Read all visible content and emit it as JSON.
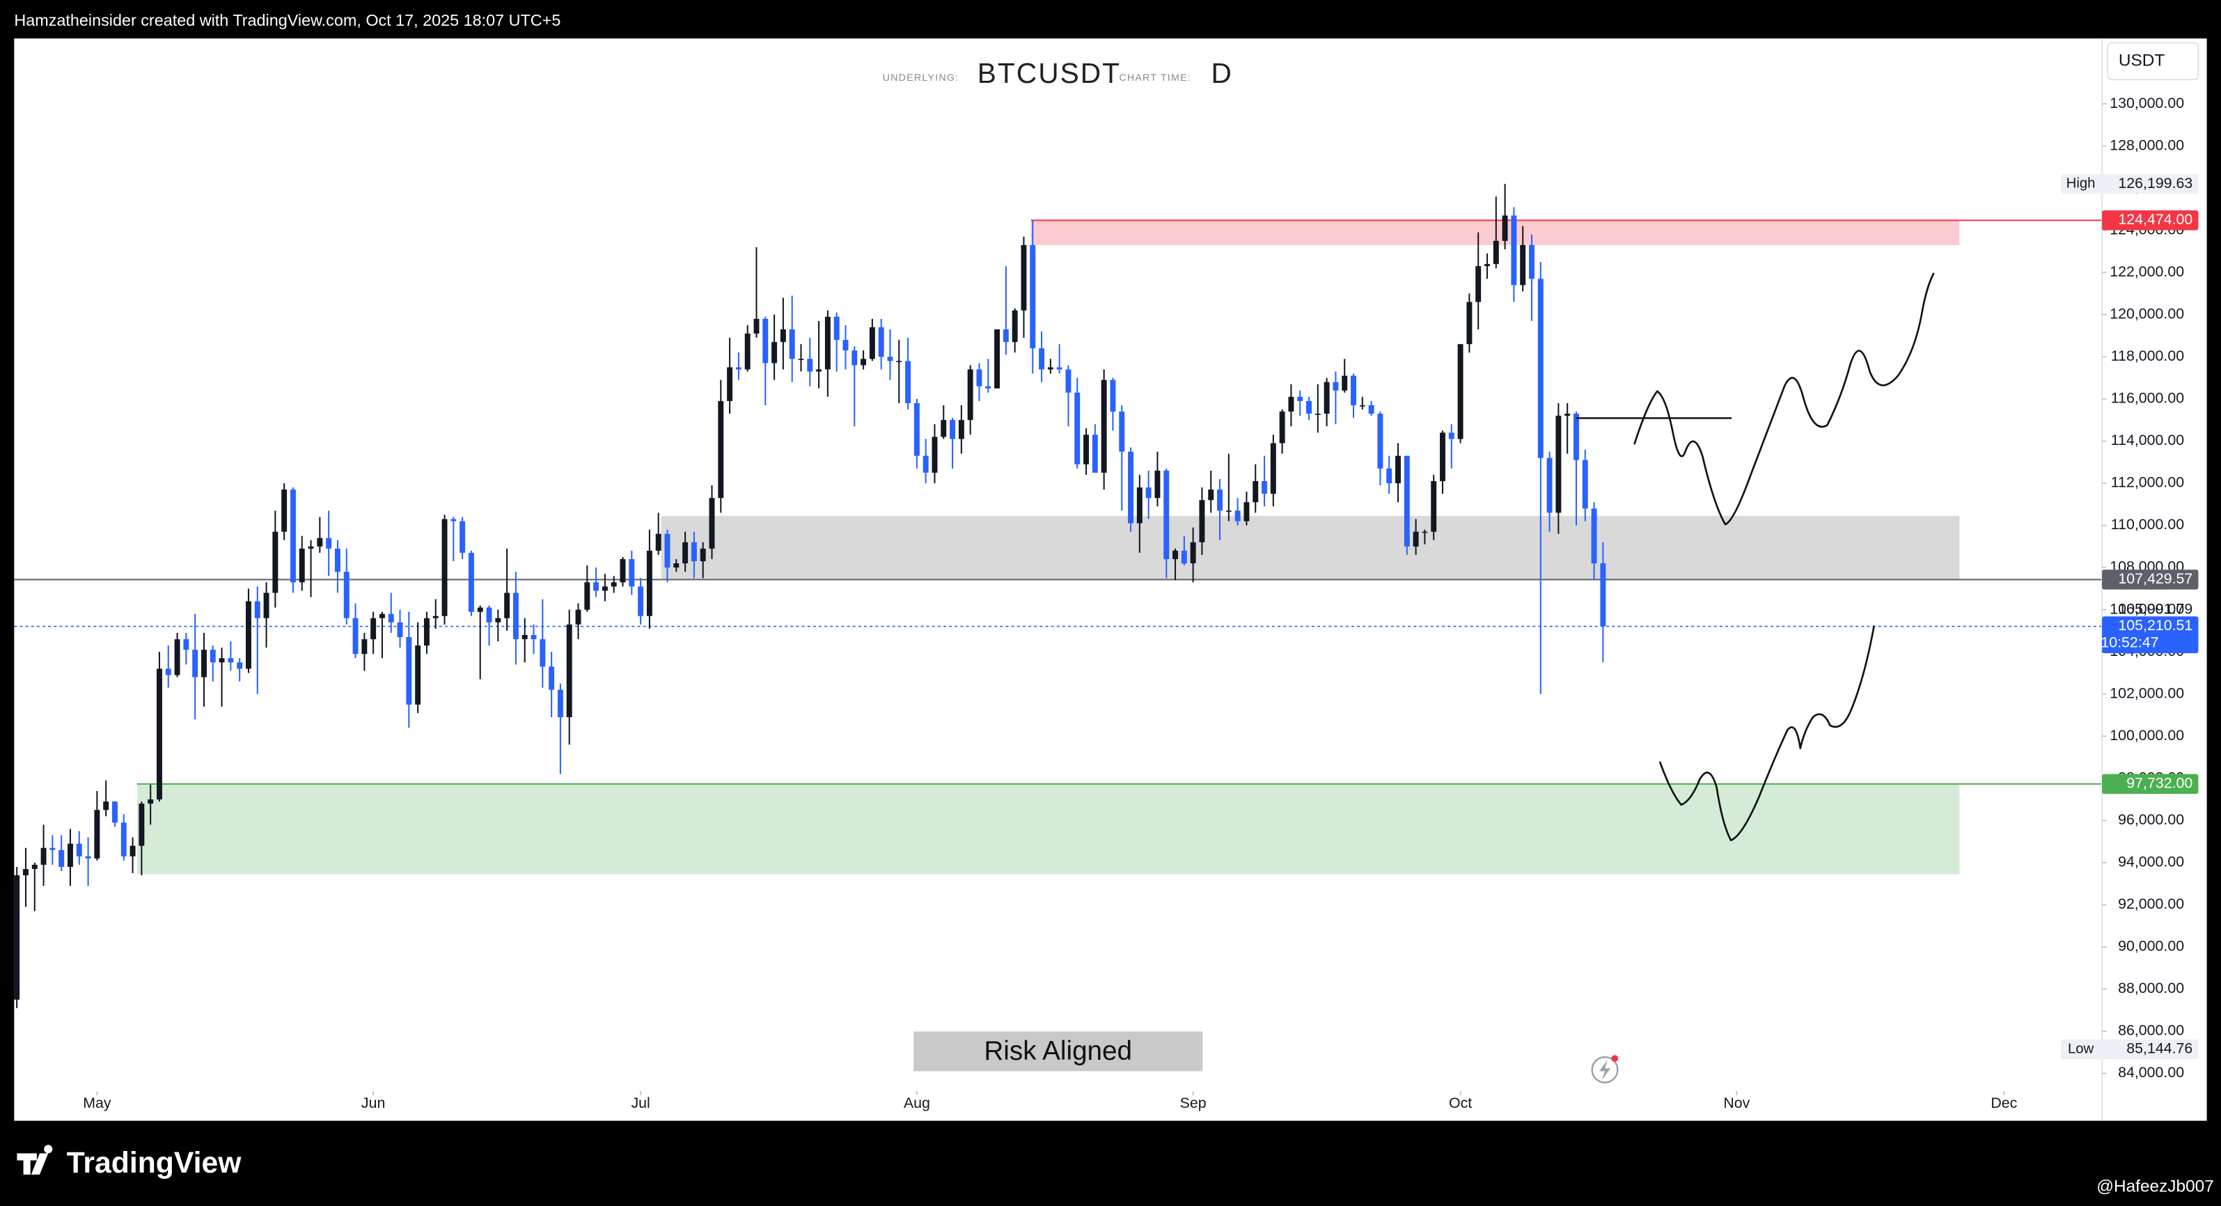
{
  "header": {
    "credit": "Hamzatheinsider created with TradingView.com, Oct 17, 2025 18:07 UTC+5"
  },
  "footer": {
    "brand": "TradingView",
    "author": "@HafeezJb007"
  },
  "chart_data": {
    "type": "candlestick",
    "underlying_label": "UNDERLYING:",
    "symbol": "BTCUSDT",
    "interval_label": "CHART TIME:",
    "interval": "D",
    "currency": "USDT",
    "annotation": "Risk Aligned",
    "up_color": "#131722",
    "down_color": "#2962ff",
    "xlim": [
      -0.3,
      234
    ],
    "ylim": [
      83300,
      133100
    ],
    "xticks": [
      {
        "value": 9,
        "label": "May"
      },
      {
        "value": 40,
        "label": "Jun"
      },
      {
        "value": 70,
        "label": "Jul"
      },
      {
        "value": 101,
        "label": "Aug"
      },
      {
        "value": 132,
        "label": "Sep"
      },
      {
        "value": 162,
        "label": "Oct"
      },
      {
        "value": 193,
        "label": "Nov"
      },
      {
        "value": 223,
        "label": "Dec"
      }
    ],
    "yticks": [
      {
        "value": 84000,
        "label": "84,000.00"
      },
      {
        "value": 86000,
        "label": "86,000.00"
      },
      {
        "value": 88000,
        "label": "88,000.00"
      },
      {
        "value": 90000,
        "label": "90,000.00"
      },
      {
        "value": 92000,
        "label": "92,000.00"
      },
      {
        "value": 94000,
        "label": "94,000.00"
      },
      {
        "value": 96000,
        "label": "96,000.00"
      },
      {
        "value": 98000,
        "label": "98,000.00"
      },
      {
        "value": 100000,
        "label": "100,000.00"
      },
      {
        "value": 102000,
        "label": "102,000.00"
      },
      {
        "value": 104000,
        "label": "104,000.00"
      },
      {
        "value": 106000,
        "label": "106,000.00"
      },
      {
        "value": 108000,
        "label": "108,000.00"
      },
      {
        "value": 110000,
        "label": "110,000.00"
      },
      {
        "value": 112000,
        "label": "112,000.00"
      },
      {
        "value": 114000,
        "label": "114,000.00"
      },
      {
        "value": 116000,
        "label": "116,000.00"
      },
      {
        "value": 118000,
        "label": "118,000.00"
      },
      {
        "value": 120000,
        "label": "120,000.00"
      },
      {
        "value": 122000,
        "label": "122,000.00"
      },
      {
        "value": 124000,
        "label": "124,000.00"
      },
      {
        "value": 126000,
        "label": "126,000.00"
      },
      {
        "value": 128000,
        "label": "128,000.00"
      },
      {
        "value": 130000,
        "label": "130,000.00"
      }
    ],
    "zones": [
      {
        "top": 124474,
        "bottom": 123300,
        "from": 113.8,
        "to": 218,
        "color": "#fccbcf"
      },
      {
        "top": 110450,
        "bottom": 107429.57,
        "from": 72.3,
        "to": 218,
        "color": "#d9d9d9"
      },
      {
        "top": 97732,
        "bottom": 93450,
        "from": 13.5,
        "to": 218,
        "color": "#d4ecd6"
      }
    ],
    "price_labels": [
      {
        "value": 124474,
        "label": "124,474.00",
        "color": "#f23645",
        "line": "solid",
        "line_from": 113.8
      },
      {
        "value": 107429.57,
        "label": "107,429.57",
        "color": "#5d606b",
        "line": "solid"
      },
      {
        "value": 105991.79,
        "label": "105,991.79"
      },
      {
        "value": 105210.51,
        "label": "105,210.51",
        "countdown": "10:52:47",
        "color": "#2962ff",
        "line": "dotted"
      },
      {
        "value": 97732,
        "label": "97,732.00",
        "color": "#4caf50",
        "line": "solid",
        "line_from": 13.5
      }
    ],
    "high": {
      "name": "High",
      "value": 126199.63,
      "label": "126,199.63"
    },
    "low": {
      "name": "Low",
      "value": 85144.76,
      "label": "85,144.76"
    },
    "ohlc": [
      [
        87500,
        93800,
        87100,
        93400
      ],
      [
        93400,
        94700,
        91900,
        93700
      ],
      [
        93700,
        94000,
        91700,
        93900
      ],
      [
        93900,
        95800,
        92900,
        94700
      ],
      [
        94700,
        95300,
        93900,
        94600
      ],
      [
        94600,
        95300,
        93600,
        93800
      ],
      [
        93800,
        95600,
        92900,
        94900
      ],
      [
        94900,
        95500,
        93900,
        94300
      ],
      [
        94300,
        95200,
        92900,
        94200
      ],
      [
        94200,
        97400,
        94100,
        96500
      ],
      [
        96500,
        97900,
        96200,
        96900
      ],
      [
        96900,
        96900,
        95700,
        95900
      ],
      [
        95900,
        96300,
        94100,
        94300
      ],
      [
        94300,
        95200,
        93500,
        94800
      ],
      [
        94800,
        96900,
        93400,
        96800
      ],
      [
        96800,
        97700,
        95800,
        97000
      ],
      [
        97000,
        104000,
        96900,
        103200
      ],
      [
        103200,
        104300,
        102300,
        102900
      ],
      [
        102900,
        104900,
        102800,
        104600
      ],
      [
        104600,
        104900,
        103400,
        104100
      ],
      [
        104100,
        105800,
        100800,
        102800
      ],
      [
        102800,
        104900,
        101400,
        104100
      ],
      [
        104100,
        104300,
        102600,
        103500
      ],
      [
        103500,
        104200,
        101400,
        103700
      ],
      [
        103700,
        104500,
        103100,
        103500
      ],
      [
        103500,
        103700,
        102600,
        103200
      ],
      [
        103200,
        107000,
        103000,
        106400
      ],
      [
        106400,
        107100,
        102000,
        105600
      ],
      [
        105600,
        107300,
        104200,
        106800
      ],
      [
        106800,
        110700,
        106100,
        109700
      ],
      [
        109700,
        112000,
        109300,
        111700
      ],
      [
        111700,
        111800,
        106800,
        107300
      ],
      [
        107300,
        109500,
        106900,
        108900
      ],
      [
        108900,
        109300,
        106600,
        109000
      ],
      [
        109000,
        110400,
        108700,
        109400
      ],
      [
        109400,
        110700,
        107600,
        108900
      ],
      [
        108900,
        109300,
        106800,
        107800
      ],
      [
        107800,
        108900,
        105300,
        105600
      ],
      [
        105600,
        106300,
        103700,
        103900
      ],
      [
        103900,
        104900,
        103100,
        104600
      ],
      [
        104600,
        105900,
        103900,
        105600
      ],
      [
        105600,
        105900,
        103700,
        105800
      ],
      [
        105800,
        106800,
        104900,
        105400
      ],
      [
        105400,
        106000,
        104200,
        104700
      ],
      [
        104700,
        105900,
        100400,
        101500
      ],
      [
        101500,
        105400,
        101100,
        104300
      ],
      [
        104300,
        105900,
        103900,
        105600
      ],
      [
        105600,
        106500,
        105100,
        105700
      ],
      [
        105700,
        110500,
        105300,
        110300
      ],
      [
        110300,
        110400,
        108300,
        110200
      ],
      [
        110200,
        110400,
        108400,
        108700
      ],
      [
        108700,
        108800,
        105700,
        105900
      ],
      [
        105900,
        106200,
        102700,
        106100
      ],
      [
        106100,
        106200,
        104300,
        105400
      ],
      [
        105400,
        106000,
        104500,
        105600
      ],
      [
        105600,
        108900,
        105000,
        106800
      ],
      [
        106800,
        107800,
        103400,
        104600
      ],
      [
        104600,
        105600,
        103500,
        104800
      ],
      [
        104800,
        105300,
        103900,
        104600
      ],
      [
        104600,
        106500,
        102300,
        103300
      ],
      [
        103300,
        104000,
        100900,
        102200
      ],
      [
        102200,
        102500,
        98200,
        100900
      ],
      [
        100900,
        106000,
        99600,
        105300
      ],
      [
        105300,
        106300,
        104600,
        106000
      ],
      [
        106000,
        108100,
        105900,
        107300
      ],
      [
        107300,
        108000,
        106600,
        106900
      ],
      [
        106900,
        107700,
        106400,
        107100
      ],
      [
        107100,
        107600,
        106800,
        107300
      ],
      [
        107300,
        108500,
        107100,
        108400
      ],
      [
        108400,
        108800,
        106700,
        107100
      ],
      [
        107100,
        107500,
        105300,
        105700
      ],
      [
        105700,
        109800,
        105100,
        108800
      ],
      [
        108800,
        110600,
        108600,
        109600
      ],
      [
        109600,
        109800,
        107300,
        108000
      ],
      [
        108000,
        108400,
        107800,
        108200
      ],
      [
        108200,
        109700,
        107800,
        109200
      ],
      [
        109200,
        109700,
        107500,
        108300
      ],
      [
        108300,
        109200,
        107500,
        108900
      ],
      [
        108900,
        111900,
        108400,
        111300
      ],
      [
        111300,
        116900,
        110600,
        115900
      ],
      [
        115900,
        118900,
        115300,
        117500
      ],
      [
        117500,
        118200,
        116900,
        117400
      ],
      [
        117400,
        119500,
        117300,
        119100
      ],
      [
        119100,
        123200,
        118900,
        119800
      ],
      [
        119800,
        119900,
        115700,
        117700
      ],
      [
        117700,
        120000,
        116900,
        118700
      ],
      [
        118700,
        120800,
        117400,
        119300
      ],
      [
        119300,
        120900,
        116800,
        117900
      ],
      [
        117900,
        118600,
        117300,
        117900
      ],
      [
        117900,
        118900,
        116600,
        117300
      ],
      [
        117300,
        119700,
        116500,
        117400
      ],
      [
        117400,
        120200,
        116100,
        119900
      ],
      [
        119900,
        120100,
        117300,
        118800
      ],
      [
        118800,
        119500,
        117400,
        118300
      ],
      [
        118300,
        118500,
        114700,
        117600
      ],
      [
        117600,
        118300,
        117400,
        117900
      ],
      [
        117900,
        119800,
        117800,
        119400
      ],
      [
        119400,
        119800,
        117400,
        118000
      ],
      [
        118000,
        119300,
        116900,
        117800
      ],
      [
        117800,
        118800,
        115800,
        117800
      ],
      [
        117800,
        118900,
        115500,
        115800
      ],
      [
        115800,
        116000,
        112700,
        113300
      ],
      [
        113300,
        114100,
        112000,
        112500
      ],
      [
        112500,
        114800,
        112000,
        114200
      ],
      [
        114200,
        115700,
        114100,
        115000
      ],
      [
        115000,
        115100,
        112700,
        114100
      ],
      [
        114100,
        115700,
        113400,
        115000
      ],
      [
        115000,
        117600,
        114300,
        117400
      ],
      [
        117400,
        117700,
        115900,
        116600
      ],
      [
        116600,
        117900,
        116300,
        116500
      ],
      [
        116500,
        119300,
        116500,
        119300
      ],
      [
        119300,
        122300,
        118100,
        118700
      ],
      [
        118700,
        120300,
        118200,
        120200
      ],
      [
        120200,
        123700,
        118900,
        123300
      ],
      [
        123300,
        124500,
        117200,
        118400
      ],
      [
        118400,
        119200,
        116800,
        117400
      ],
      [
        117400,
        117900,
        117200,
        117500
      ],
      [
        117500,
        118600,
        117200,
        117400
      ],
      [
        117400,
        117600,
        114700,
        116300
      ],
      [
        116300,
        117000,
        112700,
        112900
      ],
      [
        112900,
        114600,
        112400,
        114300
      ],
      [
        114300,
        114800,
        112600,
        112500
      ],
      [
        112500,
        117400,
        111700,
        116900
      ],
      [
        116900,
        117000,
        114500,
        115400
      ],
      [
        115400,
        115700,
        110700,
        113500
      ],
      [
        113500,
        113700,
        109700,
        110100
      ],
      [
        110100,
        112400,
        108700,
        111800
      ],
      [
        111800,
        112600,
        110300,
        111300
      ],
      [
        111300,
        113500,
        110900,
        112600
      ],
      [
        112600,
        112700,
        107500,
        108400
      ],
      [
        108400,
        108900,
        107400,
        108800
      ],
      [
        108800,
        109500,
        108100,
        108200
      ],
      [
        108200,
        109900,
        107300,
        109200
      ],
      [
        109200,
        111800,
        108600,
        111200
      ],
      [
        111200,
        112600,
        110600,
        111700
      ],
      [
        111700,
        112200,
        109300,
        110700
      ],
      [
        110700,
        113400,
        110200,
        110700
      ],
      [
        110700,
        111300,
        110000,
        110200
      ],
      [
        110200,
        111600,
        110000,
        111100
      ],
      [
        111100,
        112900,
        110600,
        112100
      ],
      [
        112100,
        113300,
        110900,
        111500
      ],
      [
        111500,
        114300,
        110900,
        113900
      ],
      [
        113900,
        115500,
        113400,
        115400
      ],
      [
        115400,
        116700,
        114700,
        116100
      ],
      [
        116100,
        116400,
        115200,
        115900
      ],
      [
        115900,
        116100,
        115000,
        115300
      ],
      [
        115300,
        116700,
        114400,
        115300
      ],
      [
        115300,
        117000,
        114700,
        116800
      ],
      [
        116800,
        117300,
        114800,
        116400
      ],
      [
        116400,
        117900,
        116300,
        117100
      ],
      [
        117100,
        117200,
        115100,
        115700
      ],
      [
        115700,
        116100,
        115500,
        115700
      ],
      [
        115700,
        115900,
        115200,
        115300
      ],
      [
        115300,
        115400,
        111900,
        112700
      ],
      [
        112700,
        113300,
        111500,
        112000
      ],
      [
        112000,
        113900,
        111100,
        113300
      ],
      [
        113300,
        113300,
        108600,
        109000
      ],
      [
        109000,
        110300,
        108600,
        109700
      ],
      [
        109700,
        109800,
        109100,
        109700
      ],
      [
        109700,
        112400,
        109300,
        112100
      ],
      [
        112100,
        114500,
        111500,
        114400
      ],
      [
        114400,
        114800,
        112700,
        114100
      ],
      [
        114100,
        118600,
        113900,
        118600
      ],
      [
        118600,
        121000,
        118200,
        120600
      ],
      [
        120600,
        123900,
        119300,
        122300
      ],
      [
        122300,
        122900,
        121700,
        122400
      ],
      [
        122400,
        125600,
        122200,
        123500
      ],
      [
        123500,
        126199.63,
        123100,
        124700
      ],
      [
        124700,
        125100,
        120600,
        121400
      ],
      [
        121400,
        124200,
        121100,
        123300
      ],
      [
        123300,
        123800,
        119700,
        121700
      ],
      [
        121700,
        122500,
        102000,
        113200
      ],
      [
        113200,
        113500,
        109700,
        110600
      ],
      [
        110600,
        115800,
        109600,
        115200
      ],
      [
        115200,
        115800,
        113400,
        115300
      ],
      [
        115300,
        115400,
        110000,
        113100
      ],
      [
        113100,
        113600,
        110200,
        110800
      ],
      [
        110800,
        111100,
        107400,
        108200
      ],
      [
        108200,
        109200,
        103500,
        105210.51
      ]
    ]
  }
}
